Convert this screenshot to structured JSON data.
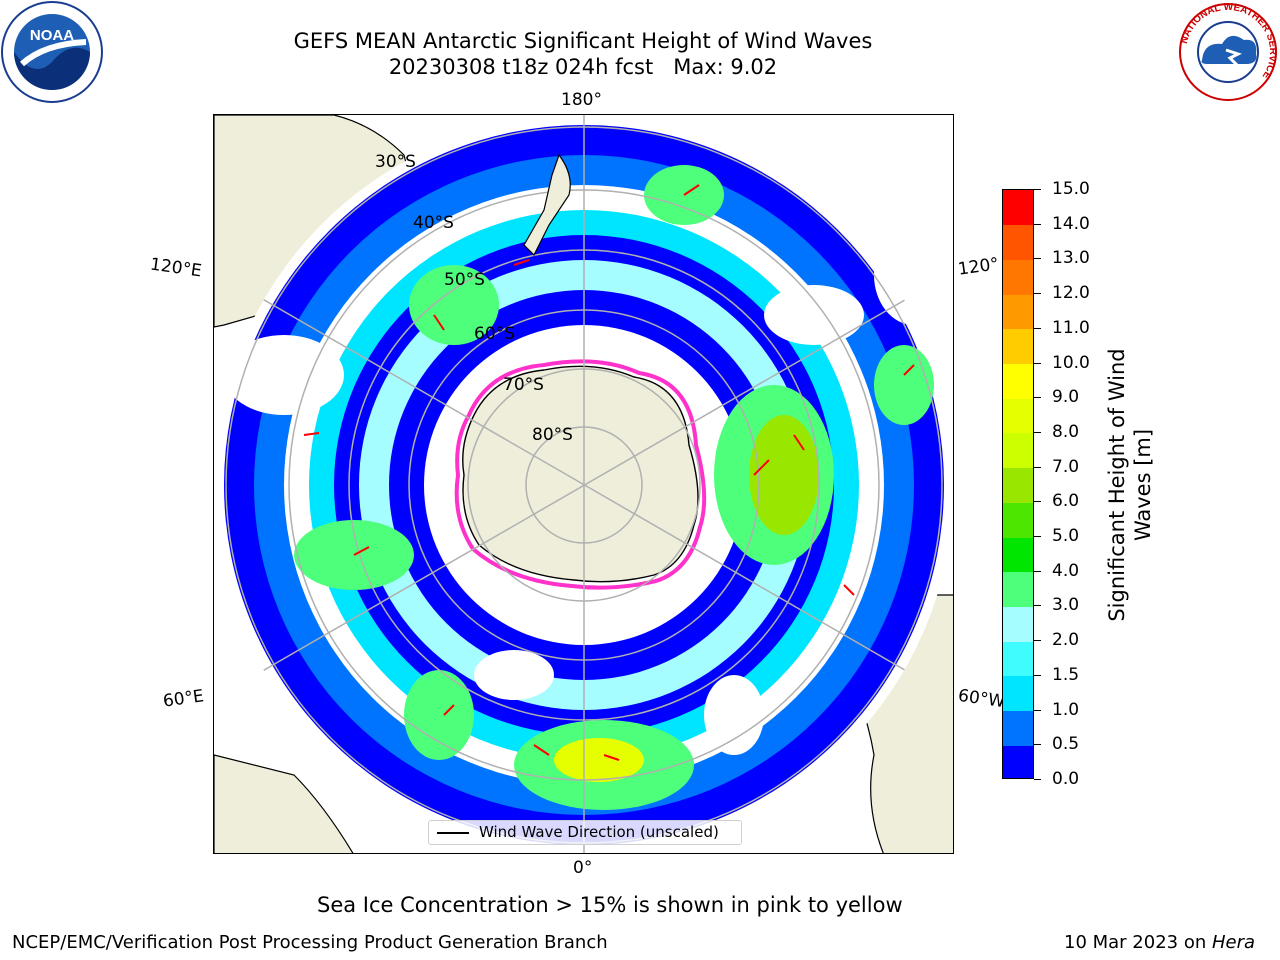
{
  "title_line1": "GEFS MEAN Antarctic Significant Height of Wind Waves",
  "title_line2": "20230308 t18z 024h fcst   Max: 9.02",
  "longitude_labels": {
    "top": "180°",
    "bottom": "0°",
    "upper_left": "120°E",
    "upper_right": "120°",
    "lower_left": "60°E",
    "lower_right": "60°W"
  },
  "latitude_labels": [
    "30°S",
    "40°S",
    "50°S",
    "60°S",
    "70°S",
    "80°S"
  ],
  "legend": {
    "label": "Wind Wave Direction (unscaled)",
    "arrow_color": "#ff0000"
  },
  "colorbar": {
    "label_line1": "Significant Height of Wind",
    "label_line2": "Waves [m]",
    "ticks": [
      "0.0",
      "0.5",
      "1.0",
      "1.5",
      "2.0",
      "3.0",
      "4.0",
      "5.0",
      "6.0",
      "7.0",
      "8.0",
      "9.0",
      "10.0",
      "11.0",
      "12.0",
      "13.0",
      "14.0",
      "15.0"
    ],
    "colors": [
      "#0000ff",
      "#0073ff",
      "#00e5ff",
      "#3ffcff",
      "#a6fdff",
      "#4dff7a",
      "#00e600",
      "#4de600",
      "#99e600",
      "#ccff00",
      "#e6ff00",
      "#ffff00",
      "#ffcc00",
      "#ff9900",
      "#ff7700",
      "#ff5500",
      "#ff0000"
    ]
  },
  "logos": {
    "noaa": "NOAA",
    "nws": "NATIONAL WEATHER SERVICE"
  },
  "footer_note": "Sea Ice Concentration > 15% is shown in pink to yellow",
  "footer_left": "NCEP/EMC/Verification Post Processing Product Generation Branch",
  "footer_right_date": "10 Mar 2023 on ",
  "footer_right_machine": "Hera"
}
